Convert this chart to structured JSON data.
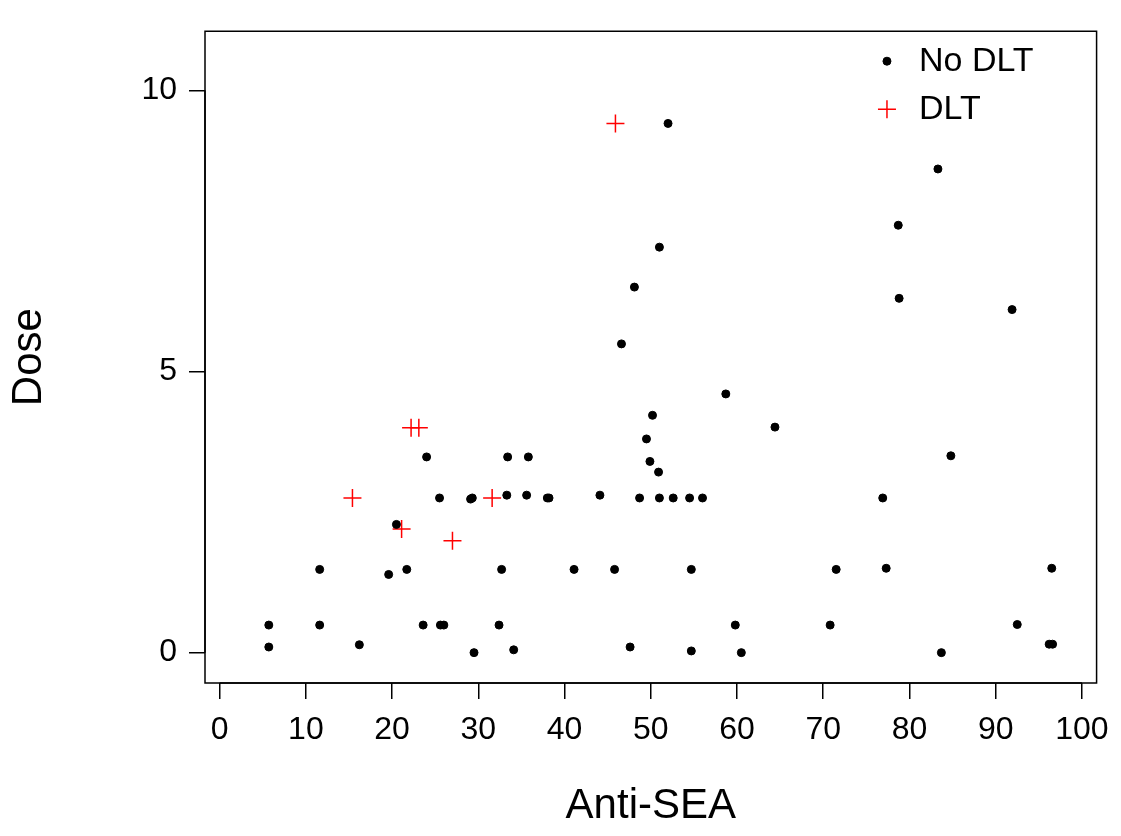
{
  "chart_data": {
    "type": "scatter",
    "xlabel": "Anti-SEA",
    "ylabel": "Dose",
    "xlim": [
      -1.7,
      101.7
    ],
    "ylim": [
      -0.54,
      11.05
    ],
    "xticks": [
      0,
      10,
      20,
      30,
      40,
      50,
      60,
      70,
      80,
      90,
      100
    ],
    "yticks": [
      0,
      5,
      10
    ],
    "grid": false,
    "legend": "top right",
    "series": [
      {
        "name": "No DLT",
        "color": "#000000",
        "marker": "circle",
        "x": [
          5.7,
          5.7,
          11.6,
          11.6,
          16.2,
          19.6,
          20.5,
          21.7,
          24.0,
          23.6,
          25.5,
          25.6,
          26.0,
          29.1,
          29.3,
          29.5,
          32.7,
          32.4,
          33.4,
          33.3,
          34.1,
          35.8,
          35.6,
          38.0,
          38.2,
          44.1,
          48.7,
          51.0,
          52.6,
          54.5,
          56.0,
          41.1,
          45.8,
          54.7,
          47.6,
          54.7,
          59.8,
          60.5,
          52.0,
          51.0,
          48.1,
          46.6,
          58.7,
          64.4,
          50.2,
          49.5,
          49.9,
          50.9,
          71.5,
          70.8,
          83.3,
          78.7,
          78.8,
          91.9,
          84.8,
          76.9,
          77.3,
          96.5,
          92.5,
          83.7,
          96.2,
          96.6
        ],
        "values": [
          0.49,
          0.1,
          1.48,
          0.49,
          0.14,
          1.39,
          2.28,
          1.48,
          3.48,
          0.49,
          2.75,
          0.49,
          0.49,
          2.73,
          2.75,
          0.0,
          1.48,
          0.49,
          3.48,
          2.8,
          0.05,
          3.48,
          2.8,
          2.75,
          2.75,
          2.8,
          2.75,
          2.75,
          2.75,
          2.75,
          2.75,
          1.48,
          1.48,
          1.48,
          0.1,
          0.03,
          0.49,
          0.0,
          9.41,
          7.21,
          6.5,
          5.49,
          4.6,
          4.01,
          4.22,
          3.8,
          3.4,
          3.21,
          1.48,
          0.49,
          8.6,
          7.6,
          6.3,
          6.1,
          3.5,
          2.75,
          1.5,
          1.5,
          0.5,
          0.0,
          0.15,
          0.15
        ]
      },
      {
        "name": "DLT",
        "color": "#ff0000",
        "marker": "cross",
        "x": [
          45.9,
          15.4,
          22.2,
          23.1,
          21.1,
          27.0,
          31.6
        ],
        "values": [
          9.41,
          2.75,
          4.0,
          4.0,
          2.2,
          1.99,
          2.75
        ]
      }
    ]
  }
}
